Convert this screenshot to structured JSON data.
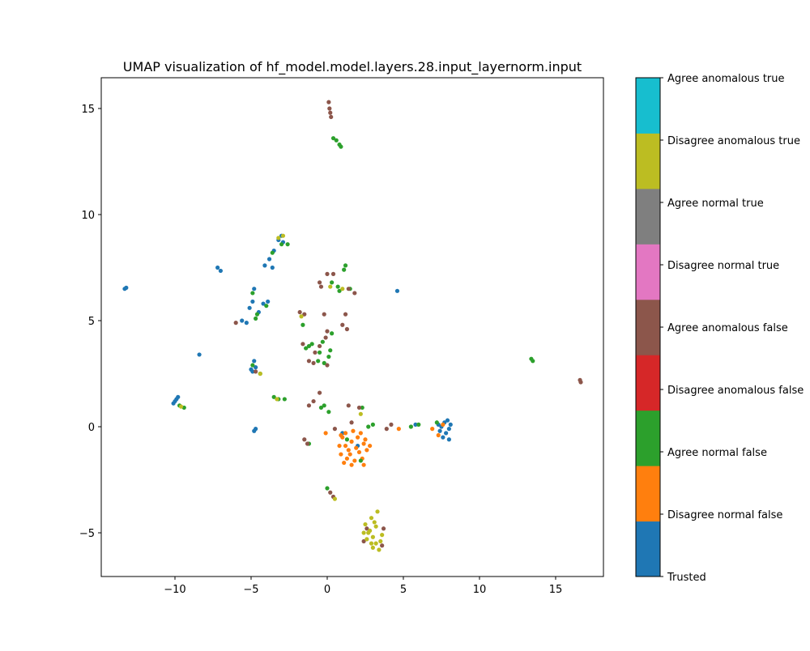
{
  "chart_data": {
    "type": "scatter",
    "title": "UMAP visualization of hf_model.model.layers.28.input_layernorm.input",
    "xlim": [
      -14.84,
      18.14
    ],
    "ylim": [
      -7.06,
      16.45
    ],
    "xticks": [
      {
        "value": -10,
        "label": "−10"
      },
      {
        "value": -5,
        "label": "−5"
      },
      0,
      5,
      10,
      15
    ],
    "yticks": [
      {
        "value": -5,
        "label": "−5"
      },
      0,
      5,
      10,
      15
    ],
    "series": [
      {
        "name": "Trusted",
        "color": "#1f77b4",
        "x": [
          -13.3,
          -13.2,
          -7.2,
          -7.0,
          -8.4,
          -10,
          -10.1,
          -9.9,
          -9.8,
          -4.8,
          -4.7,
          -4.9,
          -4.8,
          -4.7,
          -5.0,
          -3.2,
          -3.0,
          -2.9,
          -3.5,
          -3.8,
          -4.1,
          -3.6,
          -4.8,
          -5.1,
          -4.5,
          -5.3,
          -5.6,
          -4.9,
          -4.2,
          -3.9,
          4.6,
          7.5,
          7.7,
          7.8,
          8.0,
          7.4,
          8.1,
          7.6,
          7.9,
          7.3,
          8.0,
          1.0,
          2.0,
          5.8
        ],
        "y": [
          6.5,
          6.55,
          7.5,
          7.35,
          3.4,
          1.2,
          1.1,
          1.3,
          1.4,
          -0.2,
          -0.1,
          2.6,
          3.1,
          2.8,
          2.7,
          8.8,
          9.0,
          8.7,
          8.3,
          7.9,
          7.6,
          7.5,
          6.5,
          5.6,
          5.4,
          4.9,
          5.0,
          5.9,
          5.8,
          5.9,
          6.4,
          0,
          0.2,
          -0.3,
          -0.6,
          -0.2,
          0.1,
          -0.5,
          0.3,
          0.1,
          -0.1,
          -0.3,
          -0.9,
          0.1
        ]
      },
      {
        "name": "Disagree normal false",
        "color": "#ff7f0e",
        "x": [
          1.0,
          1.2,
          1.5,
          1.8,
          2.1,
          2.4,
          2.0,
          1.6,
          1.3,
          1.1,
          0.9,
          2.3,
          2.6,
          2.2,
          1.7,
          1.4,
          1.9,
          2.5,
          0.8,
          1.6,
          2.8,
          0.9,
          1.2,
          6.9,
          7.3,
          7.6,
          4.7,
          -0.1,
          2.4
        ],
        "y": [
          -0.5,
          -0.9,
          -1.3,
          -1.6,
          -1.2,
          -0.8,
          -0.5,
          -0.7,
          -1.5,
          -1.7,
          -1.3,
          -1.5,
          -1.1,
          -0.3,
          -0.2,
          -1.1,
          -1.0,
          -0.6,
          -0.9,
          -1.8,
          -0.9,
          -0.4,
          -0.3,
          -0.1,
          -0.4,
          0.1,
          -0.1,
          -0.3,
          -1.8
        ]
      },
      {
        "name": "Agree normal false",
        "color": "#2ca02c",
        "x": [
          0.4,
          0.6,
          0.8,
          0.9,
          13.4,
          13.5,
          1.2,
          1.1,
          0.3,
          0.7,
          1.5,
          0.8,
          -3.0,
          -2.6,
          -3.6,
          -4.0,
          -4.6,
          -4.7,
          -4.9,
          -1.6,
          -1.4,
          -1.0,
          -0.5,
          0.1,
          -0.2,
          -1.2,
          -0.6,
          0.2,
          -0.3,
          0.3,
          -3.5,
          -3.2,
          -2.8,
          -0.2,
          0.1,
          -0.4,
          2.7,
          3.0,
          5.5,
          6.0,
          0.0,
          -9.7,
          -9.4,
          -4.9,
          -4.4,
          2.3,
          -1.2,
          7.2,
          1.3,
          2.2
        ],
        "y": [
          13.6,
          13.5,
          13.3,
          13.2,
          3.2,
          3.1,
          7.6,
          7.4,
          6.8,
          6.6,
          6.5,
          6.4,
          8.6,
          8.6,
          8.2,
          5.7,
          5.3,
          5.1,
          6.3,
          4.8,
          3.7,
          3.9,
          3.5,
          3.3,
          3.0,
          3.8,
          3.1,
          3.6,
          4.0,
          4.4,
          1.4,
          1.3,
          1.3,
          1.0,
          0.7,
          0.9,
          0.0,
          0.1,
          0.0,
          0.1,
          -2.9,
          1.0,
          0.9,
          2.9,
          2.5,
          0.9,
          -0.8,
          0.2,
          -0.6,
          -1.6
        ]
      },
      {
        "name": "Disagree anomalous false",
        "color": "#d62728",
        "x": [],
        "y": []
      },
      {
        "name": "Agree anomalous false",
        "color": "#8c564b",
        "x": [
          0.1,
          0.15,
          0.2,
          0.25,
          16.6,
          16.65,
          0.0,
          0.4,
          -0.5,
          -0.4,
          1.4,
          1.8,
          -1.8,
          -1.5,
          -0.2,
          1.2,
          1.0,
          1.3,
          0.0,
          -0.1,
          -1.6,
          -0.8,
          -1.2,
          -0.9,
          0.0,
          -0.5,
          -6.0,
          -1.2,
          -0.9,
          -0.5,
          -1.5,
          -1.3,
          0.2,
          0.4,
          1.4,
          2.1,
          4.2,
          3.9,
          1.6,
          0.5,
          2.4,
          3.7,
          2.6,
          3.6,
          -4.7
        ],
        "y": [
          15.3,
          15.0,
          14.8,
          14.6,
          2.2,
          2.1,
          7.2,
          7.2,
          6.8,
          6.6,
          6.5,
          6.3,
          5.4,
          5.3,
          5.3,
          5.3,
          4.8,
          4.6,
          4.5,
          4.2,
          3.9,
          3.5,
          3.1,
          3.0,
          2.9,
          3.8,
          4.9,
          1.0,
          1.2,
          1.6,
          -0.6,
          -0.8,
          -3.1,
          -3.3,
          1.0,
          0.9,
          0.1,
          -0.1,
          0.2,
          -0.1,
          -5.4,
          -4.8,
          -4.8,
          -5.6,
          2.6
        ]
      },
      {
        "name": "Disagree normal true",
        "color": "#e377c2",
        "x": [],
        "y": []
      },
      {
        "name": "Agree normal true",
        "color": "#7f7f7f",
        "x": [],
        "y": []
      },
      {
        "name": "Disagree anomalous true",
        "color": "#bcbd22",
        "x": [
          2.5,
          2.8,
          3.0,
          3.2,
          3.4,
          2.6,
          3.1,
          3.3,
          2.9,
          2.7,
          3.5,
          3.0,
          2.4,
          2.9,
          3.6,
          3.2,
          -4.4,
          -2.9,
          -3.3,
          0.2,
          -1.7,
          2.2,
          1.0,
          -9.6,
          -3.2,
          0.5
        ],
        "y": [
          -4.6,
          -4.9,
          -5.2,
          -5.5,
          -5.8,
          -5.3,
          -4.5,
          -4.0,
          -4.3,
          -5.0,
          -5.4,
          -5.7,
          -5.0,
          -5.5,
          -5.1,
          -4.7,
          2.5,
          9.0,
          1.3,
          6.6,
          5.2,
          0.6,
          6.5,
          0.95,
          8.9,
          -3.4
        ]
      },
      {
        "name": "Agree anomalous true",
        "color": "#17becf",
        "x": [],
        "y": []
      }
    ]
  }
}
